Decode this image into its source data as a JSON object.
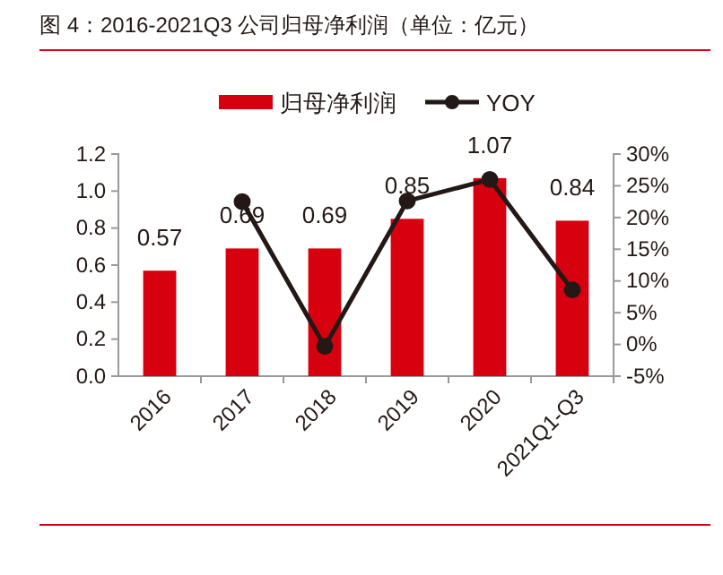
{
  "chart_data": {
    "type": "bar",
    "title": "图 4：2016-2021Q3 公司归母净利润（单位：亿元）",
    "categories": [
      "2016",
      "2017",
      "2018",
      "2019",
      "2020",
      "2021Q1-Q3"
    ],
    "series": [
      {
        "name": "归母净利润",
        "color": "#d7000f",
        "values": [
          0.57,
          0.69,
          0.69,
          0.85,
          1.07,
          0.84
        ],
        "value_labels": [
          "0.57",
          "0.69",
          "0.69",
          "0.85",
          "1.07",
          "0.84"
        ]
      },
      {
        "name": "YOY",
        "type": "line",
        "axis": "y2",
        "color": "#231815",
        "values": [
          null,
          22.5,
          -0.3,
          22.6,
          26,
          8.6
        ]
      }
    ],
    "ylim": [
      0,
      1.2
    ],
    "yticks": [
      {
        "value": 0,
        "label": "0.0"
      },
      {
        "value": 0.2,
        "label": "0.2"
      },
      {
        "value": 0.4,
        "label": "0.4"
      },
      {
        "value": 0.6,
        "label": "0.6"
      },
      {
        "value": 0.8,
        "label": "0.8"
      },
      {
        "value": 1,
        "label": "1.0"
      },
      {
        "value": 1.2,
        "label": "1.2"
      }
    ],
    "y2lim": [
      -5,
      30
    ],
    "y2ticks": [
      {
        "value": -5,
        "label": "-5%"
      },
      {
        "value": 0,
        "label": "0%"
      },
      {
        "value": 5,
        "label": "5%"
      },
      {
        "value": 10,
        "label": "10%"
      },
      {
        "value": 15,
        "label": "15%"
      },
      {
        "value": 20,
        "label": "20%"
      },
      {
        "value": 25,
        "label": "25%"
      },
      {
        "value": 30,
        "label": "30%"
      }
    ],
    "legend": "top",
    "marker": "circle",
    "line_style": "solid"
  }
}
